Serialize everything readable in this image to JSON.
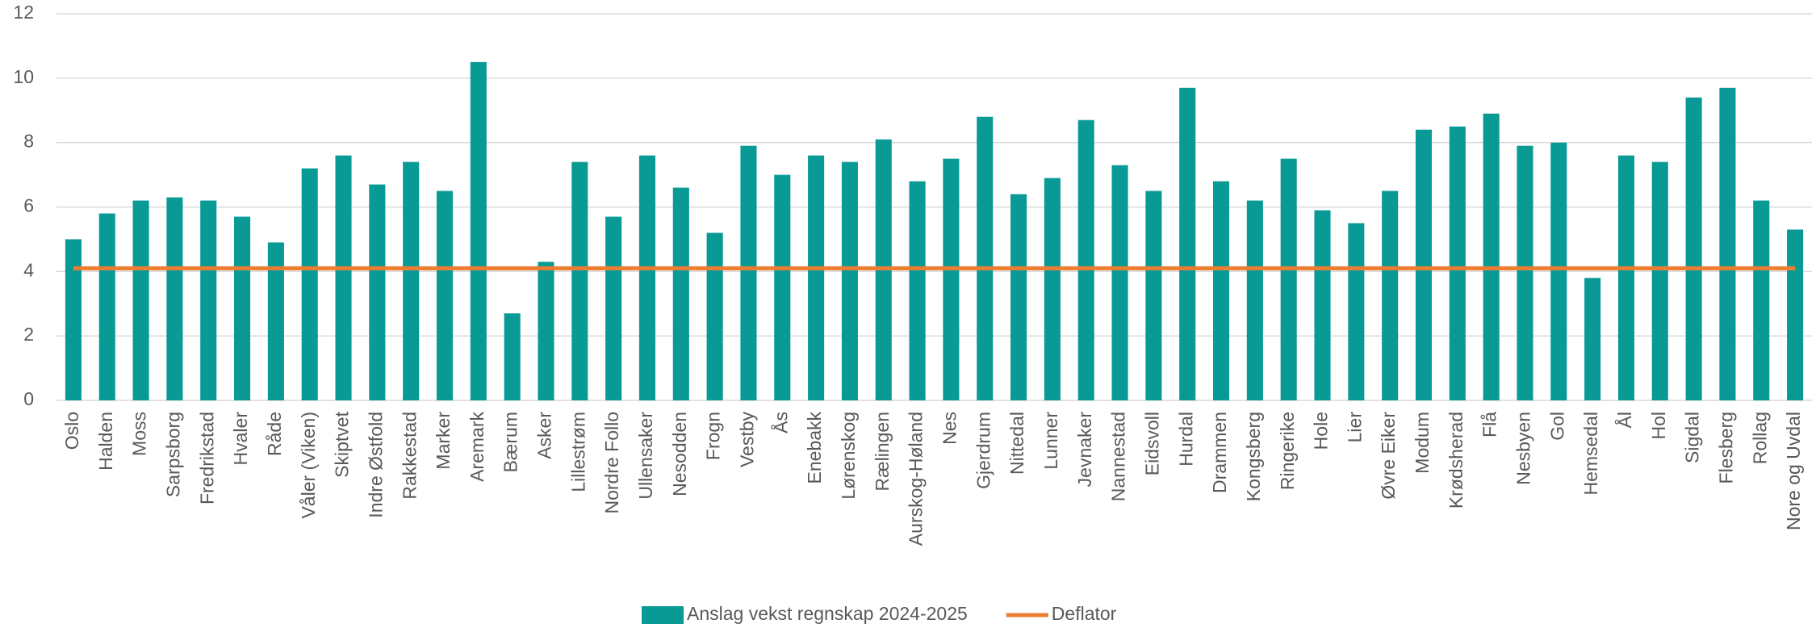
{
  "chart_data": {
    "type": "bar",
    "categories": [
      "Oslo",
      "Halden",
      "Moss",
      "Sarpsborg",
      "Fredrikstad",
      "Hvaler",
      "Råde",
      "Våler (Viken)",
      "Skiptvet",
      "Indre Østfold",
      "Rakkestad",
      "Marker",
      "Aremark",
      "Bærum",
      "Asker",
      "Lillestrøm",
      "Nordre Follo",
      "Ullensaker",
      "Nesodden",
      "Frogn",
      "Vestby",
      "Ås",
      "Enebakk",
      "Lørenskog",
      "Rælingen",
      "Aurskog-Høland",
      "Nes",
      "Gjerdrum",
      "Nittedal",
      "Lunner",
      "Jevnaker",
      "Nannestad",
      "Eidsvoll",
      "Hurdal",
      "Drammen",
      "Kongsberg",
      "Ringerike",
      "Hole",
      "Lier",
      "Øvre Eiker",
      "Modum",
      "Krødsherad",
      "Flå",
      "Nesbyen",
      "Gol",
      "Hemsedal",
      "Ål",
      "Hol",
      "Sigdal",
      "Flesberg",
      "Rollag",
      "Nore og Uvdal"
    ],
    "series": [
      {
        "name": "Anslag vekst regnskap 2024-2025",
        "type": "bar",
        "color": "#0a9a96",
        "values": [
          5.0,
          5.8,
          6.2,
          6.3,
          6.2,
          5.7,
          4.9,
          7.2,
          7.6,
          6.7,
          7.4,
          6.5,
          10.5,
          2.7,
          4.3,
          7.4,
          5.7,
          7.6,
          6.6,
          5.2,
          7.9,
          7.0,
          7.6,
          7.4,
          8.1,
          6.8,
          7.5,
          8.8,
          6.4,
          6.9,
          8.7,
          7.3,
          6.5,
          9.7,
          6.8,
          6.2,
          7.5,
          5.9,
          5.5,
          6.5,
          8.4,
          8.5,
          8.9,
          7.9,
          8.0,
          3.8,
          7.6,
          7.4,
          9.4,
          9.7,
          6.2,
          5.3
        ]
      },
      {
        "name": "Deflator",
        "type": "line",
        "color": "#ed7d31",
        "values": [
          4.1,
          4.1,
          4.1,
          4.1,
          4.1,
          4.1,
          4.1,
          4.1,
          4.1,
          4.1,
          4.1,
          4.1,
          4.1,
          4.1,
          4.1,
          4.1,
          4.1,
          4.1,
          4.1,
          4.1,
          4.1,
          4.1,
          4.1,
          4.1,
          4.1,
          4.1,
          4.1,
          4.1,
          4.1,
          4.1,
          4.1,
          4.1,
          4.1,
          4.1,
          4.1,
          4.1,
          4.1,
          4.1,
          4.1,
          4.1,
          4.1,
          4.1,
          4.1,
          4.1,
          4.1,
          4.1,
          4.1,
          4.1,
          4.1,
          4.1,
          4.1,
          4.1
        ]
      }
    ],
    "ylim": [
      0,
      12
    ],
    "yticks": [
      0,
      2,
      4,
      6,
      8,
      10,
      12
    ],
    "grid": true,
    "legend": "bottom"
  }
}
